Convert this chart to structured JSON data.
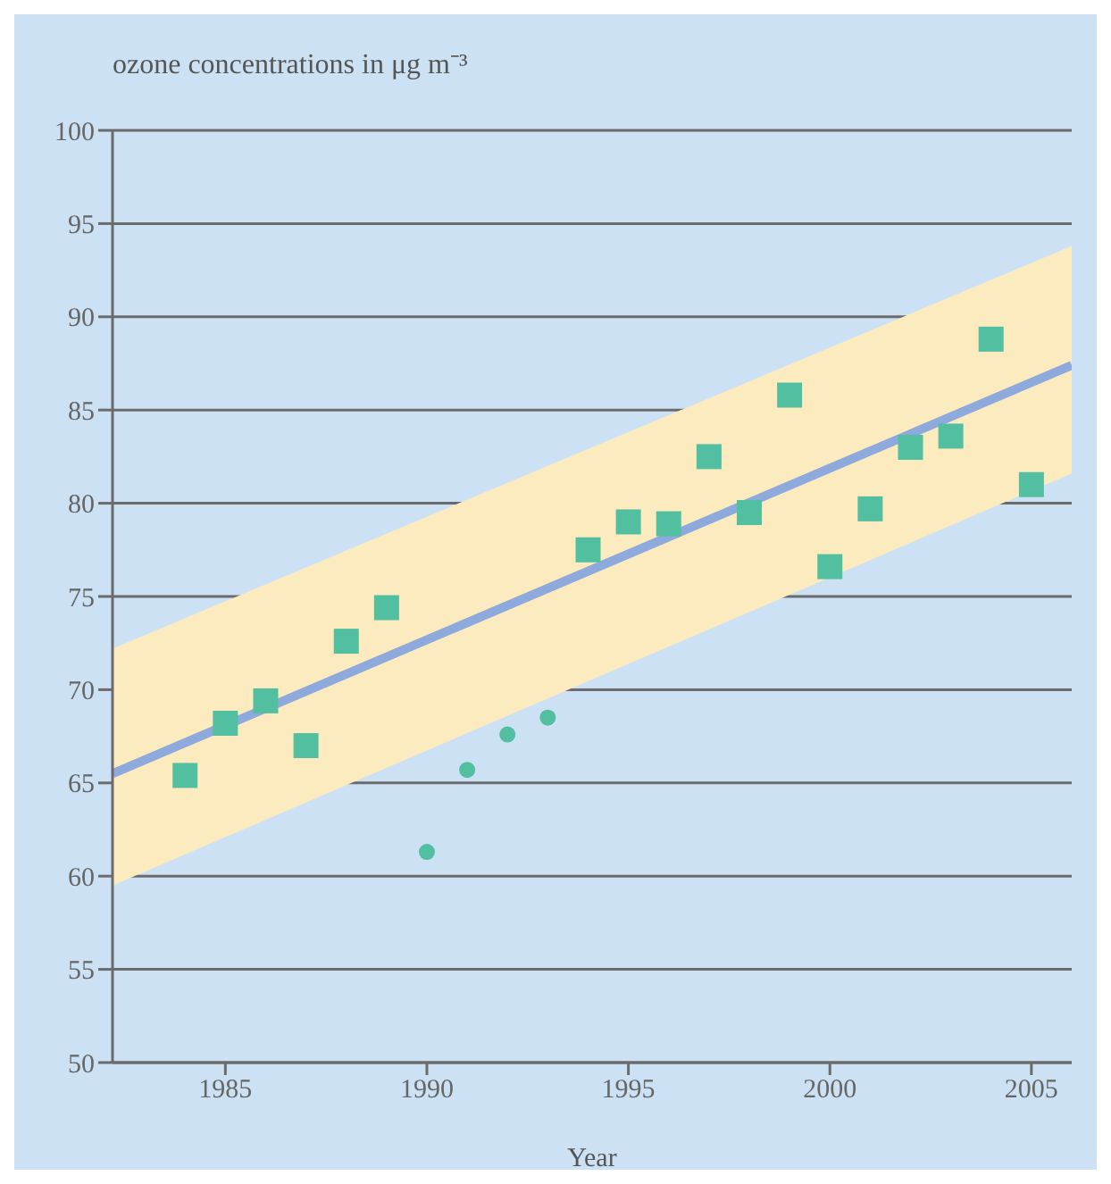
{
  "chart_data": {
    "type": "scatter",
    "ylabel": "ozone concentrations in μg m⁻³",
    "xlabel": "Year",
    "xlim": [
      1982.2,
      2006
    ],
    "xticks": [
      1985,
      1990,
      1995,
      2000,
      2005
    ],
    "ylim": [
      50,
      100
    ],
    "yticks": [
      50,
      55,
      60,
      65,
      70,
      75,
      80,
      85,
      90,
      95,
      100
    ],
    "grid": "y",
    "series": [
      {
        "type": "line",
        "color": "#8eaadc",
        "x": [
          1982.2,
          2006
        ],
        "values": [
          65.5,
          87.4
        ],
        "lower": [
          59.5,
          81.6
        ],
        "upper": [
          72.2,
          93.8
        ],
        "marker": "none"
      },
      {
        "color": "#52bfa0",
        "marker": "square",
        "x": [
          1984,
          1985,
          1986,
          1987,
          1988,
          1989,
          1994,
          1995,
          1996,
          1997,
          1998,
          1999,
          2000,
          2001,
          2002,
          2003,
          2004,
          2005
        ],
        "values": [
          65.4,
          68.2,
          69.4,
          67.0,
          72.6,
          74.4,
          77.5,
          79.0,
          78.9,
          82.5,
          79.5,
          85.8,
          76.6,
          79.7,
          83.0,
          83.6,
          88.8,
          81.0
        ]
      },
      {
        "color": "#52bfa0",
        "marker": "circle",
        "x": [
          1990,
          1991,
          1992,
          1993
        ],
        "values": [
          61.3,
          65.7,
          67.6,
          68.5
        ]
      }
    ]
  }
}
